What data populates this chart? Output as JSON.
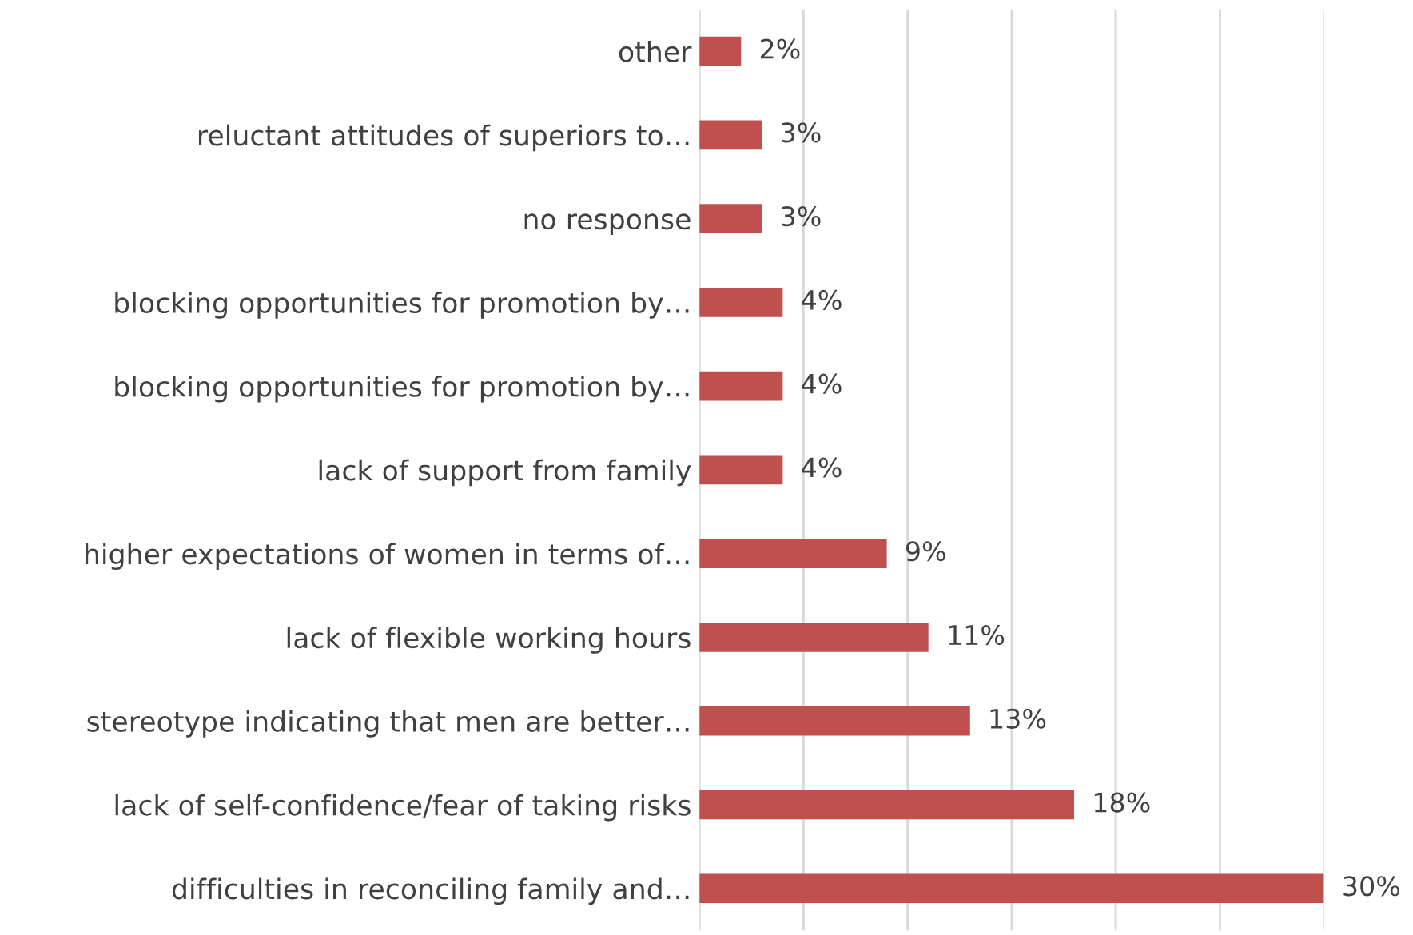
{
  "chart_data": {
    "type": "bar",
    "orientation": "horizontal",
    "categories": [
      "other",
      "reluctant attitudes of superiors to…",
      "no response",
      "blocking opportunities for promotion by…",
      "blocking opportunities for promotion by…",
      "lack of support from family",
      "higher expectations of women in terms of…",
      "lack of flexible working hours",
      "stereotype indicating that men are better…",
      "lack of self-confidence/fear of taking risks",
      "difficulties in reconciling family and…"
    ],
    "values": [
      2,
      3,
      3,
      4,
      4,
      4,
      9,
      11,
      13,
      18,
      30
    ],
    "value_labels": [
      "2%",
      "3%",
      "3%",
      "4%",
      "4%",
      "4%",
      "9%",
      "11%",
      "13%",
      "18%",
      "30%"
    ],
    "color": "#c0504d",
    "xticks": [
      {
        "value": 0,
        "label": null
      },
      {
        "value": 5,
        "label": null
      },
      {
        "value": 10,
        "label": null
      },
      {
        "value": 15,
        "label": null
      },
      {
        "value": 20,
        "label": null
      },
      {
        "value": 25,
        "label": null
      },
      {
        "value": 30,
        "label": null
      }
    ],
    "tick_labels": "y",
    "grid": "x",
    "legend": false
  }
}
